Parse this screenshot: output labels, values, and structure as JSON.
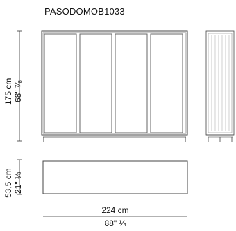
{
  "title": "PASODOMOB1033",
  "dimensions": {
    "height_cm": "175 cm",
    "height_in": "68\" ⁷⁄₈",
    "depth_cm": "53,5 cm",
    "depth_in": "21\" ⅛",
    "width_cm": "224 cm",
    "width_in": "88\" ¼"
  }
}
